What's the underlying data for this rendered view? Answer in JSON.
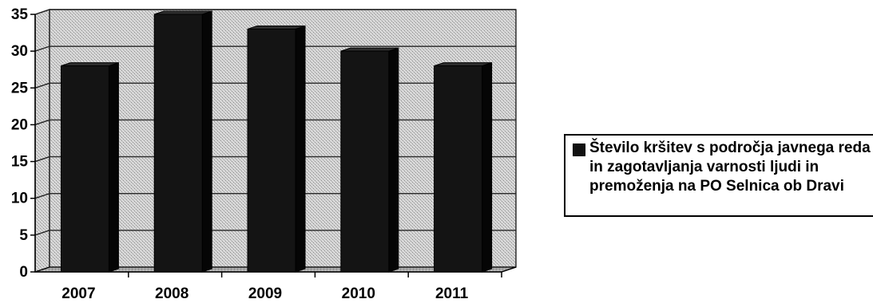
{
  "chart_data": {
    "type": "bar",
    "style": "3d-column",
    "categories": [
      "2007",
      "2008",
      "2009",
      "2010",
      "2011"
    ],
    "series": [
      {
        "name": "Število kršitev s področja javnega reda in zagotavljanja varnosti ljudi in premoženja na PO Selnica ob Dravi",
        "values": [
          28,
          35,
          33,
          30,
          28
        ]
      }
    ],
    "ylim": [
      0,
      35
    ],
    "yticks": [
      "0",
      "5",
      "10",
      "15",
      "20",
      "25",
      "30",
      "35"
    ],
    "grid": true,
    "legend_position": "right",
    "title": "",
    "xlabel": "",
    "ylabel": ""
  },
  "colors": {
    "bar": "#141414",
    "bar_side": "#050505",
    "bar_top": "#2e2e2e",
    "wall": "#c9c9c9",
    "floor": "#a8a8a8",
    "grid": "#222222"
  }
}
